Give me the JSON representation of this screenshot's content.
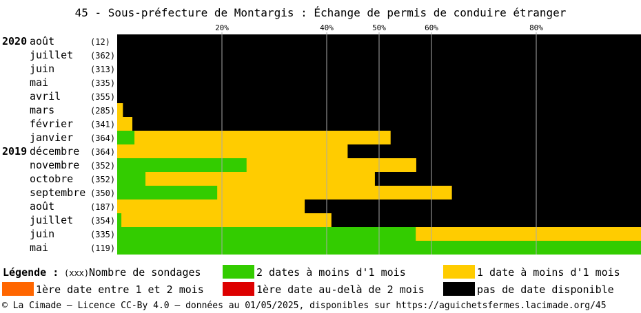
{
  "title": "45 - Sous-préfecture de Montargis : Échange de permis de conduire étranger",
  "colors": {
    "green": "#33cc00",
    "yellow": "#ffcc00",
    "orange": "#ff6600",
    "red": "#dd0000",
    "black": "#000000",
    "grid": "#aaaaaa"
  },
  "chart_data": {
    "type": "bar",
    "orientation": "horizontal",
    "stacked": true,
    "xlim": [
      0,
      100
    ],
    "x_ticks": [
      {
        "value": 20,
        "label": "20%"
      },
      {
        "value": 40,
        "label": "40%"
      },
      {
        "value": 50,
        "label": "50%"
      },
      {
        "value": 60,
        "label": "60%"
      },
      {
        "value": 80,
        "label": "80%"
      }
    ],
    "series_names": [
      "2 dates à moins d'1 mois",
      "1 date à moins d'1 mois",
      "1ère date entre 1 et 2 mois",
      "1ère date au-delà de 2 mois",
      "pas de date disponible"
    ],
    "rows": [
      {
        "year": "2020",
        "month": "août",
        "count": "(12)",
        "green": 0,
        "yellow": 0,
        "orange": 0,
        "red": 0,
        "black": 100
      },
      {
        "year": "",
        "month": "juillet",
        "count": "(362)",
        "green": 0,
        "yellow": 0,
        "orange": 0,
        "red": 0,
        "black": 100
      },
      {
        "year": "",
        "month": "juin",
        "count": "(313)",
        "green": 0,
        "yellow": 0,
        "orange": 0,
        "red": 0,
        "black": 100
      },
      {
        "year": "",
        "month": "mai",
        "count": "(335)",
        "green": 0,
        "yellow": 0,
        "orange": 0,
        "red": 0,
        "black": 100
      },
      {
        "year": "",
        "month": "avril",
        "count": "(355)",
        "green": 0,
        "yellow": 0,
        "orange": 0,
        "red": 0,
        "black": 100
      },
      {
        "year": "",
        "month": "mars",
        "count": "(285)",
        "green": 0,
        "yellow": 1.1,
        "orange": 0,
        "red": 0,
        "black": 98.9
      },
      {
        "year": "",
        "month": "février",
        "count": "(341)",
        "green": 0,
        "yellow": 2.9,
        "orange": 0,
        "red": 0,
        "black": 97.1
      },
      {
        "year": "",
        "month": "janvier",
        "count": "(364)",
        "green": 3.3,
        "yellow": 48.9,
        "orange": 0,
        "red": 0,
        "black": 47.8
      },
      {
        "year": "2019",
        "month": "décembre",
        "count": "(364)",
        "green": 0,
        "yellow": 44.0,
        "orange": 0,
        "red": 0,
        "black": 56.0
      },
      {
        "year": "",
        "month": "novembre",
        "count": "(352)",
        "green": 24.7,
        "yellow": 32.4,
        "orange": 0,
        "red": 0,
        "black": 42.9
      },
      {
        "year": "",
        "month": "octobre",
        "count": "(352)",
        "green": 5.4,
        "yellow": 43.8,
        "orange": 0,
        "red": 0,
        "black": 50.8
      },
      {
        "year": "",
        "month": "septembre",
        "count": "(350)",
        "green": 19.1,
        "yellow": 44.8,
        "orange": 0,
        "red": 0,
        "black": 36.1
      },
      {
        "year": "",
        "month": "août",
        "count": "(187)",
        "green": 0,
        "yellow": 35.8,
        "orange": 0,
        "red": 0,
        "black": 64.2
      },
      {
        "year": "",
        "month": "juillet",
        "count": "(354)",
        "green": 0.8,
        "yellow": 40.1,
        "orange": 0,
        "red": 0,
        "black": 59.1
      },
      {
        "year": "",
        "month": "juin",
        "count": "(335)",
        "green": 57.0,
        "yellow": 43.0,
        "orange": 0,
        "red": 0,
        "black": 0
      },
      {
        "year": "",
        "month": "mai",
        "count": "(119)",
        "green": 100,
        "yellow": 0,
        "orange": 0,
        "red": 0,
        "black": 0
      }
    ]
  },
  "legend": {
    "title": "Légende :",
    "xxx": "(xxx)",
    "count_label": "Nombre de sondages",
    "green_label": "2 dates à moins d'1 mois",
    "yellow_label": "1 date à moins d'1 mois",
    "orange_label": "1ère date entre 1 et 2 mois",
    "red_label": "1ère date au-delà de 2 mois",
    "black_label": "pas de date disponible"
  },
  "footer": "© La Cimade — Licence CC-By 4.0 — données au 01/05/2025, disponibles sur https://aguichetsfermes.lacimade.org/45"
}
